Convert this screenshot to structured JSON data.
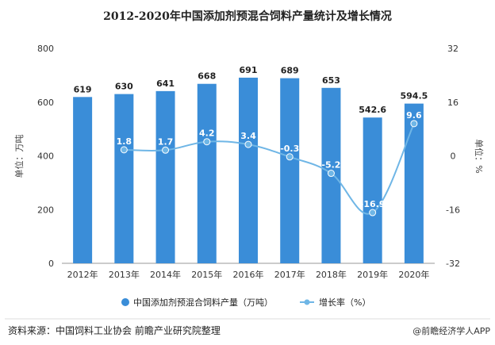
{
  "chart_data": {
    "type": "bar",
    "title": "2012-2020年中国添加剂预混合饲料产量统计及增长情况",
    "categories": [
      "2012年",
      "2013年",
      "2014年",
      "2015年",
      "2016年",
      "2017年",
      "2018年",
      "2019年",
      "2020年"
    ],
    "series": [
      {
        "name": "中国添加剂预混合饲料产量（万吨）",
        "type": "bar",
        "axis": "left",
        "color": "#3A8DD8",
        "values": [
          619,
          630,
          641,
          668,
          691,
          689,
          653,
          542.6,
          594.5
        ],
        "labels": [
          "619",
          "630",
          "641",
          "668",
          "691",
          "689",
          "653",
          "542.6",
          "594.5"
        ]
      },
      {
        "name": "增长率（%）",
        "type": "line",
        "axis": "right",
        "color": "#6FB6E6",
        "values": [
          null,
          1.8,
          1.7,
          4.2,
          3.4,
          -0.3,
          -5.2,
          -16.9,
          9.6
        ],
        "labels": [
          "",
          "1.8",
          "1.7",
          "4.2",
          "3.4",
          "-0.3",
          "-5.2",
          "-16.9",
          "9.6"
        ]
      }
    ],
    "ylabel": "单位：万吨",
    "y2label": "单位：%",
    "ylim": [
      0,
      800
    ],
    "y_ticks": [
      "0",
      "200",
      "400",
      "600",
      "800"
    ],
    "y2lim": [
      -32,
      32
    ],
    "y2_ticks": [
      "-32",
      "-16",
      "0",
      "16",
      "32"
    ],
    "grid": false,
    "legend": "bottom"
  },
  "source": "资料来源：中国饲料工业协会 前瞻产业研究院整理",
  "watermark": "@前瞻经济学人APP"
}
